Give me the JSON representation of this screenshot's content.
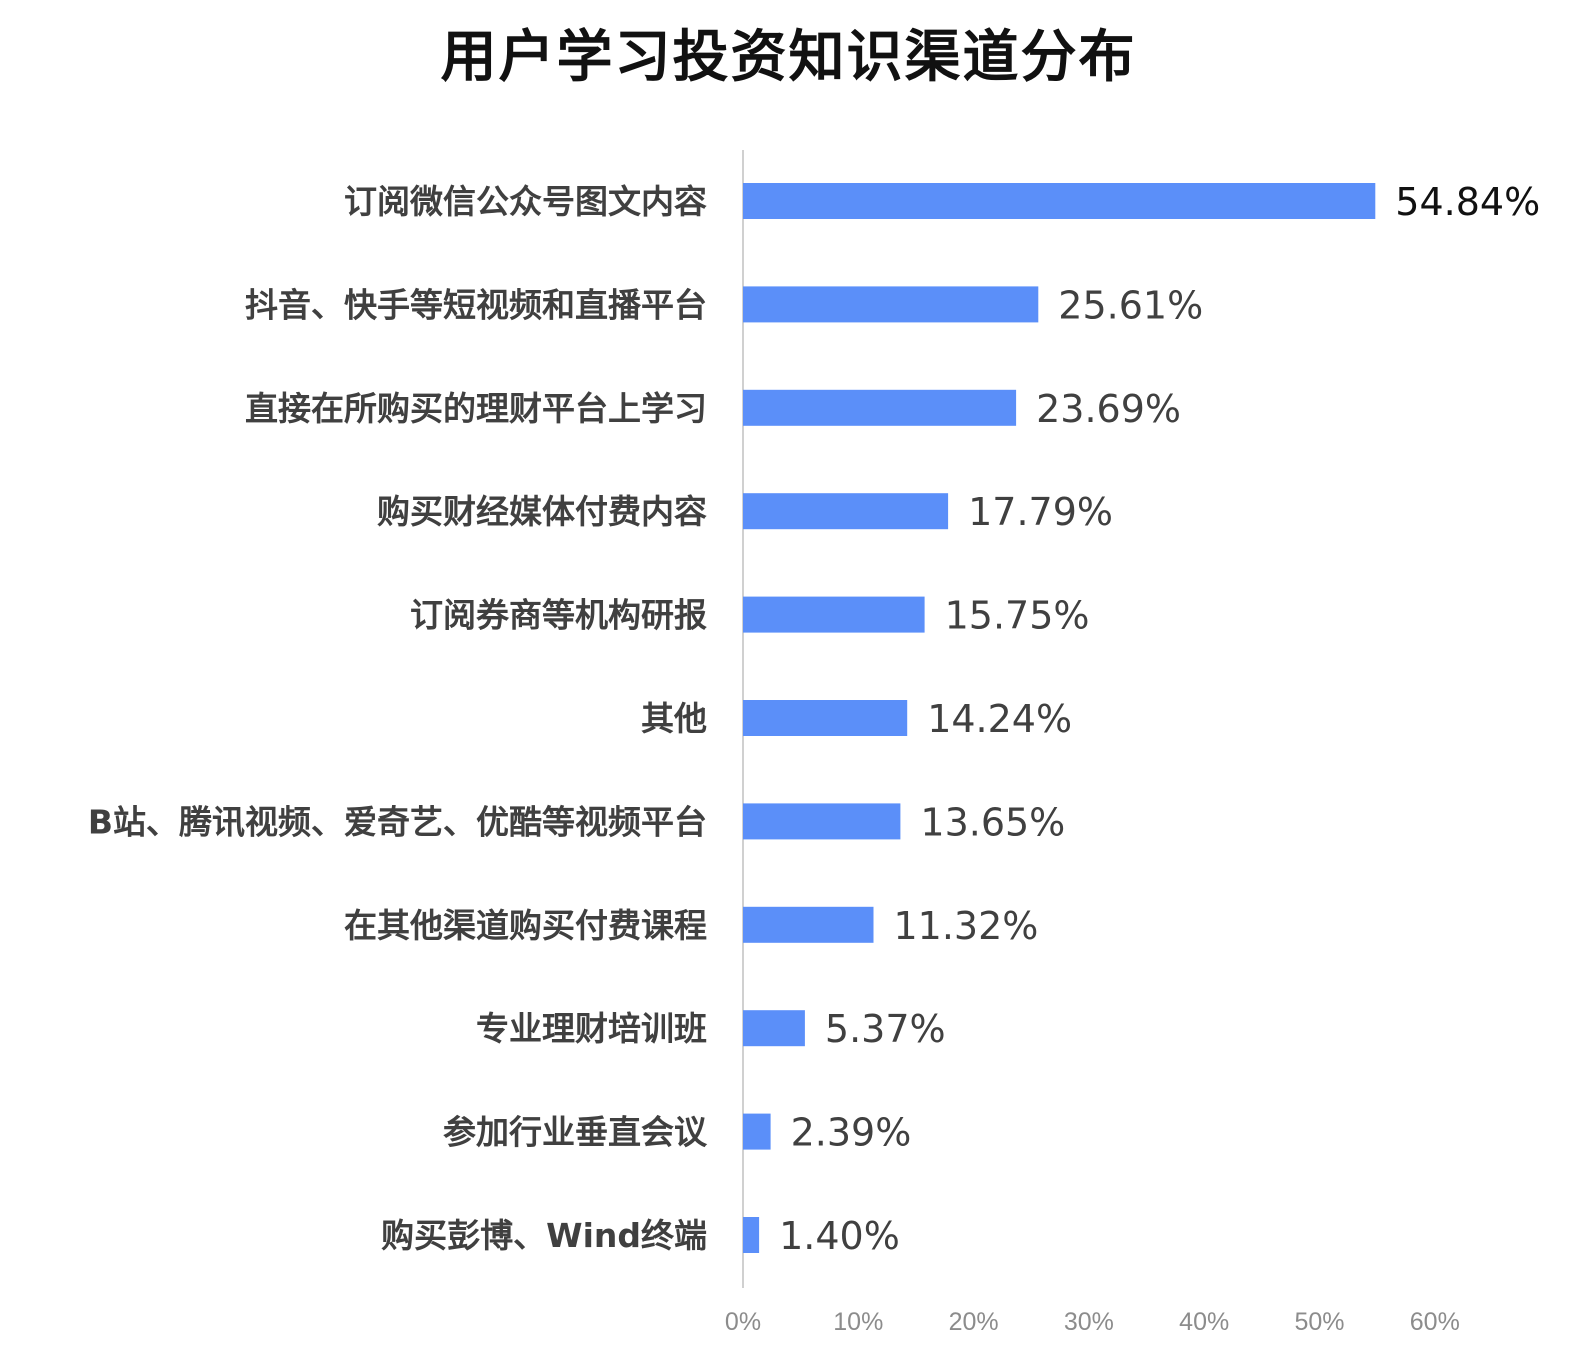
{
  "chart_data": {
    "type": "bar",
    "orientation": "horizontal",
    "title": "用户学习投资知识渠道分布",
    "categories": [
      "订阅微信公众号图文内容",
      "抖音、快手等短视频和直播平台",
      "直接在所购买的理财平台上学习",
      "购买财经媒体付费内容",
      "订阅券商等机构研报",
      "其他",
      "B站、腾讯视频、爱奇艺、优酷等视频平台",
      "在其他渠道购买付费课程",
      "专业理财培训班",
      "参加行业垂直会议",
      "购买彭博、Wind终端"
    ],
    "values": [
      54.84,
      25.61,
      23.69,
      17.79,
      15.75,
      14.24,
      13.65,
      11.32,
      5.37,
      2.39,
      1.4
    ],
    "value_labels": [
      "54.84%",
      "25.61%",
      "23.69%",
      "17.79%",
      "15.75%",
      "14.24%",
      "13.65%",
      "11.32%",
      "5.37%",
      "2.39%",
      "1.40%"
    ],
    "xlim": [
      0,
      60
    ],
    "x_ticks": [
      "0%",
      "10%",
      "20%",
      "30%",
      "40%",
      "50%",
      "60%"
    ],
    "xlabel": "",
    "ylabel": "",
    "bar_color": "#5b8ff9",
    "grid": false,
    "legend": "none"
  }
}
